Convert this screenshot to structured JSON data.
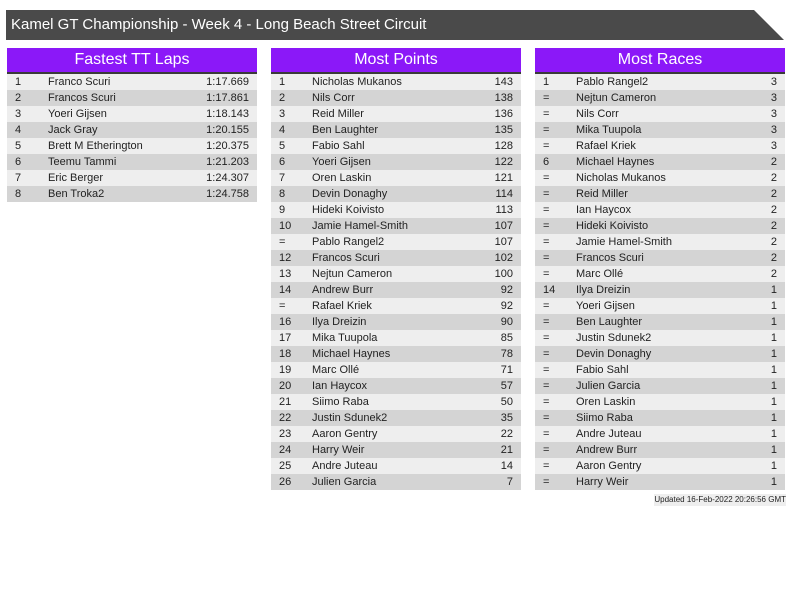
{
  "title": "Kamel GT Championship - Week 4 - Long Beach Street Circuit",
  "tables": [
    {
      "heading": "Fastest TT Laps",
      "rows": [
        [
          "1",
          "Franco Scuri",
          "1:17.669"
        ],
        [
          "2",
          "Francos Scuri",
          "1:17.861"
        ],
        [
          "3",
          "Yoeri Gijsen",
          "1:18.143"
        ],
        [
          "4",
          "Jack Gray",
          "1:20.155"
        ],
        [
          "5",
          "Brett M Etherington",
          "1:20.375"
        ],
        [
          "6",
          "Teemu Tammi",
          "1:21.203"
        ],
        [
          "7",
          "Eric Berger",
          "1:24.307"
        ],
        [
          "8",
          "Ben Troka2",
          "1:24.758"
        ]
      ]
    },
    {
      "heading": "Most Points",
      "rows": [
        [
          "1",
          "Nicholas Mukanos",
          "143"
        ],
        [
          "2",
          "Nils Corr",
          "138"
        ],
        [
          "3",
          "Reid Miller",
          "136"
        ],
        [
          "4",
          "Ben Laughter",
          "135"
        ],
        [
          "5",
          "Fabio Sahl",
          "128"
        ],
        [
          "6",
          "Yoeri Gijsen",
          "122"
        ],
        [
          "7",
          "Oren Laskin",
          "121"
        ],
        [
          "8",
          "Devin Donaghy",
          "114"
        ],
        [
          "9",
          "Hideki Koivisto",
          "113"
        ],
        [
          "10",
          "Jamie Hamel-Smith",
          "107"
        ],
        [
          "=",
          "Pablo Rangel2",
          "107"
        ],
        [
          "12",
          "Francos Scuri",
          "102"
        ],
        [
          "13",
          "Nejtun Cameron",
          "100"
        ],
        [
          "14",
          "Andrew Burr",
          "92"
        ],
        [
          "=",
          "Rafael Kriek",
          "92"
        ],
        [
          "16",
          "Ilya Dreizin",
          "90"
        ],
        [
          "17",
          "Mika Tuupola",
          "85"
        ],
        [
          "18",
          "Michael Haynes",
          "78"
        ],
        [
          "19",
          "Marc Ollé",
          "71"
        ],
        [
          "20",
          "Ian Haycox",
          "57"
        ],
        [
          "21",
          "Siimo Raba",
          "50"
        ],
        [
          "22",
          "Justin Sdunek2",
          "35"
        ],
        [
          "23",
          "Aaron Gentry",
          "22"
        ],
        [
          "24",
          "Harry Weir",
          "21"
        ],
        [
          "25",
          "Andre Juteau",
          "14"
        ],
        [
          "26",
          "Julien Garcia",
          "7"
        ]
      ]
    },
    {
      "heading": "Most Races",
      "rows": [
        [
          "1",
          "Pablo Rangel2",
          "3"
        ],
        [
          "=",
          "Nejtun Cameron",
          "3"
        ],
        [
          "=",
          "Nils Corr",
          "3"
        ],
        [
          "=",
          "Mika Tuupola",
          "3"
        ],
        [
          "=",
          "Rafael Kriek",
          "3"
        ],
        [
          "6",
          "Michael Haynes",
          "2"
        ],
        [
          "=",
          "Nicholas Mukanos",
          "2"
        ],
        [
          "=",
          "Reid Miller",
          "2"
        ],
        [
          "=",
          "Ian Haycox",
          "2"
        ],
        [
          "=",
          "Hideki Koivisto",
          "2"
        ],
        [
          "=",
          "Jamie Hamel-Smith",
          "2"
        ],
        [
          "=",
          "Francos Scuri",
          "2"
        ],
        [
          "=",
          "Marc Ollé",
          "2"
        ],
        [
          "14",
          "Ilya Dreizin",
          "1"
        ],
        [
          "=",
          "Yoeri Gijsen",
          "1"
        ],
        [
          "=",
          "Ben Laughter",
          "1"
        ],
        [
          "=",
          "Justin Sdunek2",
          "1"
        ],
        [
          "=",
          "Devin Donaghy",
          "1"
        ],
        [
          "=",
          "Fabio Sahl",
          "1"
        ],
        [
          "=",
          "Julien Garcia",
          "1"
        ],
        [
          "=",
          "Oren Laskin",
          "1"
        ],
        [
          "=",
          "Siimo Raba",
          "1"
        ],
        [
          "=",
          "Andre Juteau",
          "1"
        ],
        [
          "=",
          "Andrew Burr",
          "1"
        ],
        [
          "=",
          "Aaron Gentry",
          "1"
        ],
        [
          "=",
          "Harry Weir",
          "1"
        ]
      ]
    }
  ],
  "updated": "Updated 16-Feb-2022 20:26:56 GMT",
  "colors": {
    "header": "#8b18f8",
    "title_bar": "#4a4a4a"
  }
}
